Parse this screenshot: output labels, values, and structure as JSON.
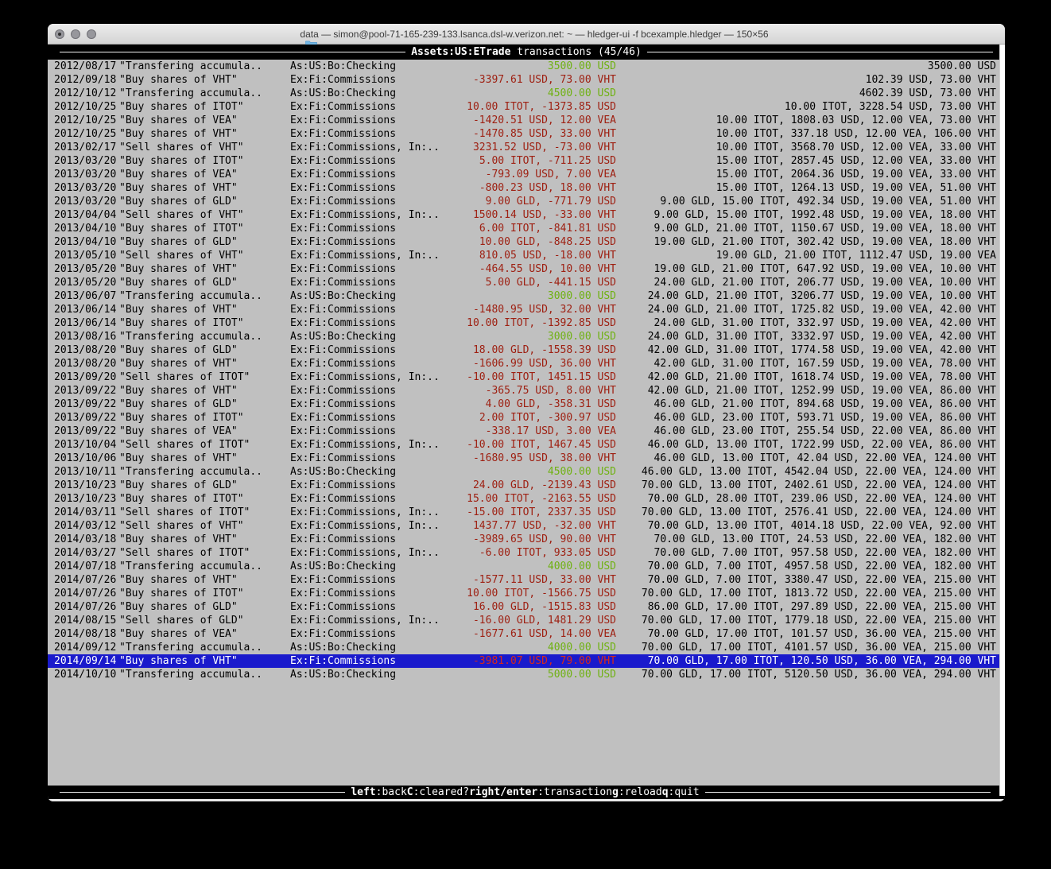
{
  "colors": {
    "terminal_bg": "#c0c0c0",
    "positive_green": "#6fb112",
    "negative_red": "#9e2012",
    "selection_bg": "#1a1acc",
    "selection_red": "#d6281c"
  },
  "window": {
    "title": "data — simon@pool-71-165-239-133.lsanca.dsl-w.verizon.net: ~ — hledger-ui -f bcexample.hledger — 150×56"
  },
  "screen": {
    "title_account": "Assets:US:ETrade",
    "title_rest": " transactions (45/46)"
  },
  "statusbar": {
    "keys": [
      {
        "key": "left",
        "desc": ":back"
      },
      {
        "key": "C",
        "desc": ":cleared?"
      },
      {
        "key": "right/enter",
        "desc": ":transaction"
      },
      {
        "key": "g",
        "desc": ":reload"
      },
      {
        "key": "q",
        "desc": ":quit"
      }
    ]
  },
  "transactions": [
    {
      "date": "2012/08/17",
      "description": "\"Transfering accumula..",
      "accounts": "As:US:Bo:Checking",
      "amount": "3500.00 USD",
      "amount_color": "green",
      "total": "3500.00 USD",
      "selected": false
    },
    {
      "date": "2012/09/18",
      "description": "\"Buy shares of VHT\"",
      "accounts": "Ex:Fi:Commissions",
      "amount": "-3397.61 USD, 73.00 VHT",
      "amount_color": "red",
      "total": "102.39 USD, 73.00 VHT",
      "selected": false
    },
    {
      "date": "2012/10/12",
      "description": "\"Transfering accumula..",
      "accounts": "As:US:Bo:Checking",
      "amount": "4500.00 USD",
      "amount_color": "green",
      "total": "4602.39 USD, 73.00 VHT",
      "selected": false
    },
    {
      "date": "2012/10/25",
      "description": "\"Buy shares of ITOT\"",
      "accounts": "Ex:Fi:Commissions",
      "amount": "10.00 ITOT, -1373.85 USD",
      "amount_color": "red",
      "total": "10.00 ITOT, 3228.54 USD, 73.00 VHT",
      "selected": false
    },
    {
      "date": "2012/10/25",
      "description": "\"Buy shares of VEA\"",
      "accounts": "Ex:Fi:Commissions",
      "amount": "-1420.51 USD, 12.00 VEA",
      "amount_color": "red",
      "total": "10.00 ITOT, 1808.03 USD, 12.00 VEA, 73.00 VHT",
      "selected": false
    },
    {
      "date": "2012/10/25",
      "description": "\"Buy shares of VHT\"",
      "accounts": "Ex:Fi:Commissions",
      "amount": "-1470.85 USD, 33.00 VHT",
      "amount_color": "red",
      "total": "10.00 ITOT, 337.18 USD, 12.00 VEA, 106.00 VHT",
      "selected": false
    },
    {
      "date": "2013/02/17",
      "description": "\"Sell shares of VHT\"",
      "accounts": "Ex:Fi:Commissions, In:..",
      "amount": "3231.52 USD, -73.00 VHT",
      "amount_color": "red",
      "total": "10.00 ITOT, 3568.70 USD, 12.00 VEA, 33.00 VHT",
      "selected": false
    },
    {
      "date": "2013/03/20",
      "description": "\"Buy shares of ITOT\"",
      "accounts": "Ex:Fi:Commissions",
      "amount": "5.00 ITOT, -711.25 USD",
      "amount_color": "red",
      "total": "15.00 ITOT, 2857.45 USD, 12.00 VEA, 33.00 VHT",
      "selected": false
    },
    {
      "date": "2013/03/20",
      "description": "\"Buy shares of VEA\"",
      "accounts": "Ex:Fi:Commissions",
      "amount": "-793.09 USD, 7.00 VEA",
      "amount_color": "red",
      "total": "15.00 ITOT, 2064.36 USD, 19.00 VEA, 33.00 VHT",
      "selected": false
    },
    {
      "date": "2013/03/20",
      "description": "\"Buy shares of VHT\"",
      "accounts": "Ex:Fi:Commissions",
      "amount": "-800.23 USD, 18.00 VHT",
      "amount_color": "red",
      "total": "15.00 ITOT, 1264.13 USD, 19.00 VEA, 51.00 VHT",
      "selected": false
    },
    {
      "date": "2013/03/20",
      "description": "\"Buy shares of GLD\"",
      "accounts": "Ex:Fi:Commissions",
      "amount": "9.00 GLD, -771.79 USD",
      "amount_color": "red",
      "total": "9.00 GLD, 15.00 ITOT, 492.34 USD, 19.00 VEA, 51.00 VHT",
      "selected": false
    },
    {
      "date": "2013/04/04",
      "description": "\"Sell shares of VHT\"",
      "accounts": "Ex:Fi:Commissions, In:..",
      "amount": "1500.14 USD, -33.00 VHT",
      "amount_color": "red",
      "total": "9.00 GLD, 15.00 ITOT, 1992.48 USD, 19.00 VEA, 18.00 VHT",
      "selected": false
    },
    {
      "date": "2013/04/10",
      "description": "\"Buy shares of ITOT\"",
      "accounts": "Ex:Fi:Commissions",
      "amount": "6.00 ITOT, -841.81 USD",
      "amount_color": "red",
      "total": "9.00 GLD, 21.00 ITOT, 1150.67 USD, 19.00 VEA, 18.00 VHT",
      "selected": false
    },
    {
      "date": "2013/04/10",
      "description": "\"Buy shares of GLD\"",
      "accounts": "Ex:Fi:Commissions",
      "amount": "10.00 GLD, -848.25 USD",
      "amount_color": "red",
      "total": "19.00 GLD, 21.00 ITOT, 302.42 USD, 19.00 VEA, 18.00 VHT",
      "selected": false
    },
    {
      "date": "2013/05/10",
      "description": "\"Sell shares of VHT\"",
      "accounts": "Ex:Fi:Commissions, In:..",
      "amount": "810.05 USD, -18.00 VHT",
      "amount_color": "red",
      "total": "19.00 GLD, 21.00 ITOT, 1112.47 USD, 19.00 VEA",
      "selected": false
    },
    {
      "date": "2013/05/20",
      "description": "\"Buy shares of VHT\"",
      "accounts": "Ex:Fi:Commissions",
      "amount": "-464.55 USD, 10.00 VHT",
      "amount_color": "red",
      "total": "19.00 GLD, 21.00 ITOT, 647.92 USD, 19.00 VEA, 10.00 VHT",
      "selected": false
    },
    {
      "date": "2013/05/20",
      "description": "\"Buy shares of GLD\"",
      "accounts": "Ex:Fi:Commissions",
      "amount": "5.00 GLD, -441.15 USD",
      "amount_color": "red",
      "total": "24.00 GLD, 21.00 ITOT, 206.77 USD, 19.00 VEA, 10.00 VHT",
      "selected": false
    },
    {
      "date": "2013/06/07",
      "description": "\"Transfering accumula..",
      "accounts": "As:US:Bo:Checking",
      "amount": "3000.00 USD",
      "amount_color": "green",
      "total": "24.00 GLD, 21.00 ITOT, 3206.77 USD, 19.00 VEA, 10.00 VHT",
      "selected": false
    },
    {
      "date": "2013/06/14",
      "description": "\"Buy shares of VHT\"",
      "accounts": "Ex:Fi:Commissions",
      "amount": "-1480.95 USD, 32.00 VHT",
      "amount_color": "red",
      "total": "24.00 GLD, 21.00 ITOT, 1725.82 USD, 19.00 VEA, 42.00 VHT",
      "selected": false
    },
    {
      "date": "2013/06/14",
      "description": "\"Buy shares of ITOT\"",
      "accounts": "Ex:Fi:Commissions",
      "amount": "10.00 ITOT, -1392.85 USD",
      "amount_color": "red",
      "total": "24.00 GLD, 31.00 ITOT, 332.97 USD, 19.00 VEA, 42.00 VHT",
      "selected": false
    },
    {
      "date": "2013/08/16",
      "description": "\"Transfering accumula..",
      "accounts": "As:US:Bo:Checking",
      "amount": "3000.00 USD",
      "amount_color": "green",
      "total": "24.00 GLD, 31.00 ITOT, 3332.97 USD, 19.00 VEA, 42.00 VHT",
      "selected": false
    },
    {
      "date": "2013/08/20",
      "description": "\"Buy shares of GLD\"",
      "accounts": "Ex:Fi:Commissions",
      "amount": "18.00 GLD, -1558.39 USD",
      "amount_color": "red",
      "total": "42.00 GLD, 31.00 ITOT, 1774.58 USD, 19.00 VEA, 42.00 VHT",
      "selected": false
    },
    {
      "date": "2013/08/20",
      "description": "\"Buy shares of VHT\"",
      "accounts": "Ex:Fi:Commissions",
      "amount": "-1606.99 USD, 36.00 VHT",
      "amount_color": "red",
      "total": "42.00 GLD, 31.00 ITOT, 167.59 USD, 19.00 VEA, 78.00 VHT",
      "selected": false
    },
    {
      "date": "2013/09/20",
      "description": "\"Sell shares of ITOT\"",
      "accounts": "Ex:Fi:Commissions, In:..",
      "amount": "-10.00 ITOT, 1451.15 USD",
      "amount_color": "red",
      "total": "42.00 GLD, 21.00 ITOT, 1618.74 USD, 19.00 VEA, 78.00 VHT",
      "selected": false
    },
    {
      "date": "2013/09/22",
      "description": "\"Buy shares of VHT\"",
      "accounts": "Ex:Fi:Commissions",
      "amount": "-365.75 USD, 8.00 VHT",
      "amount_color": "red",
      "total": "42.00 GLD, 21.00 ITOT, 1252.99 USD, 19.00 VEA, 86.00 VHT",
      "selected": false
    },
    {
      "date": "2013/09/22",
      "description": "\"Buy shares of GLD\"",
      "accounts": "Ex:Fi:Commissions",
      "amount": "4.00 GLD, -358.31 USD",
      "amount_color": "red",
      "total": "46.00 GLD, 21.00 ITOT, 894.68 USD, 19.00 VEA, 86.00 VHT",
      "selected": false
    },
    {
      "date": "2013/09/22",
      "description": "\"Buy shares of ITOT\"",
      "accounts": "Ex:Fi:Commissions",
      "amount": "2.00 ITOT, -300.97 USD",
      "amount_color": "red",
      "total": "46.00 GLD, 23.00 ITOT, 593.71 USD, 19.00 VEA, 86.00 VHT",
      "selected": false
    },
    {
      "date": "2013/09/22",
      "description": "\"Buy shares of VEA\"",
      "accounts": "Ex:Fi:Commissions",
      "amount": "-338.17 USD, 3.00 VEA",
      "amount_color": "red",
      "total": "46.00 GLD, 23.00 ITOT, 255.54 USD, 22.00 VEA, 86.00 VHT",
      "selected": false
    },
    {
      "date": "2013/10/04",
      "description": "\"Sell shares of ITOT\"",
      "accounts": "Ex:Fi:Commissions, In:..",
      "amount": "-10.00 ITOT, 1467.45 USD",
      "amount_color": "red",
      "total": "46.00 GLD, 13.00 ITOT, 1722.99 USD, 22.00 VEA, 86.00 VHT",
      "selected": false
    },
    {
      "date": "2013/10/06",
      "description": "\"Buy shares of VHT\"",
      "accounts": "Ex:Fi:Commissions",
      "amount": "-1680.95 USD, 38.00 VHT",
      "amount_color": "red",
      "total": "46.00 GLD, 13.00 ITOT, 42.04 USD, 22.00 VEA, 124.00 VHT",
      "selected": false
    },
    {
      "date": "2013/10/11",
      "description": "\"Transfering accumula..",
      "accounts": "As:US:Bo:Checking",
      "amount": "4500.00 USD",
      "amount_color": "green",
      "total": "46.00 GLD, 13.00 ITOT, 4542.04 USD, 22.00 VEA, 124.00 VHT",
      "selected": false
    },
    {
      "date": "2013/10/23",
      "description": "\"Buy shares of GLD\"",
      "accounts": "Ex:Fi:Commissions",
      "amount": "24.00 GLD, -2139.43 USD",
      "amount_color": "red",
      "total": "70.00 GLD, 13.00 ITOT, 2402.61 USD, 22.00 VEA, 124.00 VHT",
      "selected": false
    },
    {
      "date": "2013/10/23",
      "description": "\"Buy shares of ITOT\"",
      "accounts": "Ex:Fi:Commissions",
      "amount": "15.00 ITOT, -2163.55 USD",
      "amount_color": "red",
      "total": "70.00 GLD, 28.00 ITOT, 239.06 USD, 22.00 VEA, 124.00 VHT",
      "selected": false
    },
    {
      "date": "2014/03/11",
      "description": "\"Sell shares of ITOT\"",
      "accounts": "Ex:Fi:Commissions, In:..",
      "amount": "-15.00 ITOT, 2337.35 USD",
      "amount_color": "red",
      "total": "70.00 GLD, 13.00 ITOT, 2576.41 USD, 22.00 VEA, 124.00 VHT",
      "selected": false
    },
    {
      "date": "2014/03/12",
      "description": "\"Sell shares of VHT\"",
      "accounts": "Ex:Fi:Commissions, In:..",
      "amount": "1437.77 USD, -32.00 VHT",
      "amount_color": "red",
      "total": "70.00 GLD, 13.00 ITOT, 4014.18 USD, 22.00 VEA, 92.00 VHT",
      "selected": false
    },
    {
      "date": "2014/03/18",
      "description": "\"Buy shares of VHT\"",
      "accounts": "Ex:Fi:Commissions",
      "amount": "-3989.65 USD, 90.00 VHT",
      "amount_color": "red",
      "total": "70.00 GLD, 13.00 ITOT, 24.53 USD, 22.00 VEA, 182.00 VHT",
      "selected": false
    },
    {
      "date": "2014/03/27",
      "description": "\"Sell shares of ITOT\"",
      "accounts": "Ex:Fi:Commissions, In:..",
      "amount": "-6.00 ITOT, 933.05 USD",
      "amount_color": "red",
      "total": "70.00 GLD, 7.00 ITOT, 957.58 USD, 22.00 VEA, 182.00 VHT",
      "selected": false
    },
    {
      "date": "2014/07/18",
      "description": "\"Transfering accumula..",
      "accounts": "As:US:Bo:Checking",
      "amount": "4000.00 USD",
      "amount_color": "green",
      "total": "70.00 GLD, 7.00 ITOT, 4957.58 USD, 22.00 VEA, 182.00 VHT",
      "selected": false
    },
    {
      "date": "2014/07/26",
      "description": "\"Buy shares of VHT\"",
      "accounts": "Ex:Fi:Commissions",
      "amount": "-1577.11 USD, 33.00 VHT",
      "amount_color": "red",
      "total": "70.00 GLD, 7.00 ITOT, 3380.47 USD, 22.00 VEA, 215.00 VHT",
      "selected": false
    },
    {
      "date": "2014/07/26",
      "description": "\"Buy shares of ITOT\"",
      "accounts": "Ex:Fi:Commissions",
      "amount": "10.00 ITOT, -1566.75 USD",
      "amount_color": "red",
      "total": "70.00 GLD, 17.00 ITOT, 1813.72 USD, 22.00 VEA, 215.00 VHT",
      "selected": false
    },
    {
      "date": "2014/07/26",
      "description": "\"Buy shares of GLD\"",
      "accounts": "Ex:Fi:Commissions",
      "amount": "16.00 GLD, -1515.83 USD",
      "amount_color": "red",
      "total": "86.00 GLD, 17.00 ITOT, 297.89 USD, 22.00 VEA, 215.00 VHT",
      "selected": false
    },
    {
      "date": "2014/08/15",
      "description": "\"Sell shares of GLD\"",
      "accounts": "Ex:Fi:Commissions, In:..",
      "amount": "-16.00 GLD, 1481.29 USD",
      "amount_color": "red",
      "total": "70.00 GLD, 17.00 ITOT, 1779.18 USD, 22.00 VEA, 215.00 VHT",
      "selected": false
    },
    {
      "date": "2014/08/18",
      "description": "\"Buy shares of VEA\"",
      "accounts": "Ex:Fi:Commissions",
      "amount": "-1677.61 USD, 14.00 VEA",
      "amount_color": "red",
      "total": "70.00 GLD, 17.00 ITOT, 101.57 USD, 36.00 VEA, 215.00 VHT",
      "selected": false
    },
    {
      "date": "2014/09/12",
      "description": "\"Transfering accumula..",
      "accounts": "As:US:Bo:Checking",
      "amount": "4000.00 USD",
      "amount_color": "green",
      "total": "70.00 GLD, 17.00 ITOT, 4101.57 USD, 36.00 VEA, 215.00 VHT",
      "selected": false
    },
    {
      "date": "2014/09/14",
      "description": "\"Buy shares of VHT\"",
      "accounts": "Ex:Fi:Commissions",
      "amount": "-3981.07 USD, 79.00 VHT",
      "amount_color": "red",
      "total": "70.00 GLD, 17.00 ITOT, 120.50 USD, 36.00 VEA, 294.00 VHT",
      "selected": true
    },
    {
      "date": "2014/10/10",
      "description": "\"Transfering accumula..",
      "accounts": "As:US:Bo:Checking",
      "amount": "5000.00 USD",
      "amount_color": "green",
      "total": "70.00 GLD, 17.00 ITOT, 5120.50 USD, 36.00 VEA, 294.00 VHT",
      "selected": false
    }
  ]
}
